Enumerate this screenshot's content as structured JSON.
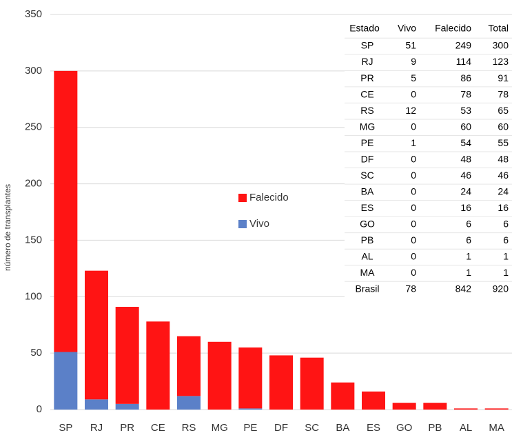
{
  "chart_data": {
    "type": "stacked_bar",
    "y_label": "número de transplantes",
    "categories": [
      "SP",
      "RJ",
      "PR",
      "CE",
      "RS",
      "MG",
      "PE",
      "DF",
      "SC",
      "BA",
      "ES",
      "GO",
      "PB",
      "AL",
      "MA"
    ],
    "series": [
      {
        "name": "Vivo",
        "color": "#5b80c8",
        "values": [
          51,
          9,
          5,
          0,
          12,
          0,
          1,
          0,
          0,
          0,
          0,
          0,
          0,
          0,
          0
        ]
      },
      {
        "name": "Falecido",
        "color": "#ff1414",
        "values": [
          249,
          114,
          86,
          78,
          53,
          60,
          54,
          48,
          46,
          24,
          16,
          6,
          6,
          1,
          1
        ]
      }
    ],
    "ylim": [
      0,
      350
    ],
    "yticks": [
      0,
      50,
      100,
      150,
      200,
      250,
      300,
      350
    ],
    "grid": true
  },
  "table": {
    "columns": [
      "Estado",
      "Vivo",
      "Falecido",
      "Total"
    ],
    "rows": [
      [
        "SP",
        51,
        249,
        300
      ],
      [
        "RJ",
        9,
        114,
        123
      ],
      [
        "PR",
        5,
        86,
        91
      ],
      [
        "CE",
        0,
        78,
        78
      ],
      [
        "RS",
        12,
        53,
        65
      ],
      [
        "MG",
        0,
        60,
        60
      ],
      [
        "PE",
        1,
        54,
        55
      ],
      [
        "DF",
        0,
        48,
        48
      ],
      [
        "SC",
        0,
        46,
        46
      ],
      [
        "BA",
        0,
        24,
        24
      ],
      [
        "ES",
        0,
        16,
        16
      ],
      [
        "GO",
        0,
        6,
        6
      ],
      [
        "PB",
        0,
        6,
        6
      ],
      [
        "AL",
        0,
        1,
        1
      ],
      [
        "MA",
        0,
        1,
        1
      ],
      [
        "Brasil",
        78,
        842,
        920
      ]
    ]
  }
}
